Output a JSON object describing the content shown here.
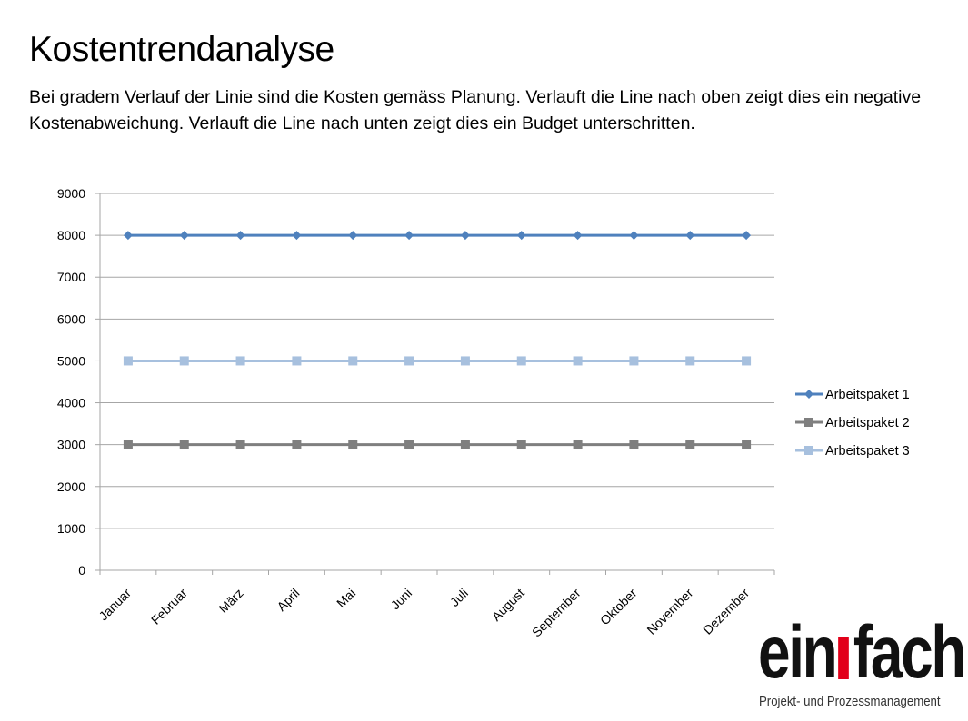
{
  "slide": {
    "title": "Kostentrendanalyse",
    "description": "Bei gradem Verlauf der Linie sind die Kosten gemäss Planung. Verlauft die Line nach oben zeigt dies ein negative Kostenabweichung. Verlauft die Line nach unten zeigt dies ein Budget unterschritten."
  },
  "logo": {
    "word_part1": "ein",
    "word_part2": "fach",
    "subtitle": "Projekt- und Prozessmanagement",
    "accent_color": "#e2001a"
  },
  "chart_data": {
    "type": "line",
    "categories": [
      "Januar",
      "Februar",
      "März",
      "April",
      "Mai",
      "Juni",
      "Juli",
      "August",
      "September",
      "Oktober",
      "November",
      "Dezember"
    ],
    "series": [
      {
        "name": "Arbeitspaket 1",
        "values": [
          8000,
          8000,
          8000,
          8000,
          8000,
          8000,
          8000,
          8000,
          8000,
          8000,
          8000,
          8000
        ],
        "color": "#4f81bd",
        "marker": "diamond"
      },
      {
        "name": "Arbeitspaket 2",
        "values": [
          3000,
          3000,
          3000,
          3000,
          3000,
          3000,
          3000,
          3000,
          3000,
          3000,
          3000,
          3000
        ],
        "color": "#7f7f7f",
        "marker": "square"
      },
      {
        "name": "Arbeitspaket 3",
        "values": [
          5000,
          5000,
          5000,
          5000,
          5000,
          5000,
          5000,
          5000,
          5000,
          5000,
          5000,
          5000
        ],
        "color": "#a7c0de",
        "marker": "square"
      }
    ],
    "ylim": [
      0,
      9000
    ],
    "yticks": [
      0,
      1000,
      2000,
      3000,
      4000,
      5000,
      6000,
      7000,
      8000,
      9000
    ],
    "grid": true,
    "legend": "right",
    "gridline_color": "#a6a6a6"
  }
}
